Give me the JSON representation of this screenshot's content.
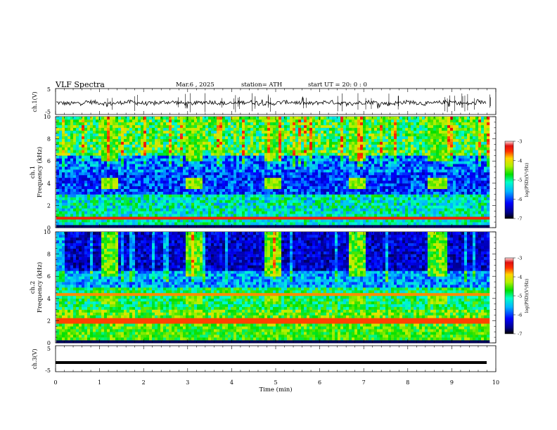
{
  "header": {
    "title": "VLF  Spectra",
    "date": "Mar.6  , 2025",
    "station": "station= ATH",
    "start": "start  UT  =    20: 0   : 0"
  },
  "chart_data": [
    {
      "type": "line",
      "panel": "ch1-waveform",
      "ylabel": "ch.1(V)",
      "y_ticks": [
        "5",
        "-5"
      ],
      "ylim": [
        -5,
        5
      ],
      "xlim": [
        0,
        10
      ],
      "note_level": "trace fluctuates around -0.5 V"
    },
    {
      "type": "heatmap",
      "panel": "ch1-spectrogram",
      "ylabel": "ch.1\nFrequency  (kHz)",
      "ylabel_line1": "ch.1",
      "ylabel_line2": "Frequency  (kHz)",
      "y_ticks": [
        "0",
        "2",
        "4",
        "6",
        "8",
        "10"
      ],
      "ylim": [
        0,
        10
      ],
      "xlim": [
        0,
        9.8
      ],
      "bursts_min": [
        [
          1.0,
          1.4
        ],
        [
          2.9,
          3.3
        ],
        [
          4.7,
          5.1
        ],
        [
          6.6,
          7.0
        ],
        [
          8.4,
          8.85
        ]
      ],
      "colorbar": {
        "label": "log(PSD)(V²/Hz)",
        "ticks": [
          "-3",
          "-4",
          "-5",
          "-6",
          "-7"
        ],
        "range": [
          -7,
          -3
        ]
      }
    },
    {
      "type": "heatmap",
      "panel": "ch2-spectrogram",
      "ylabel_line1": "ch.2",
      "ylabel_line2": "Frequency  (kHz)",
      "y_ticks": [
        "0",
        "2",
        "4",
        "6",
        "8",
        "10"
      ],
      "ylim": [
        0,
        10
      ],
      "xlim": [
        0,
        9.8
      ],
      "bursts_min": [
        [
          1.0,
          1.4
        ],
        [
          2.9,
          3.3
        ],
        [
          4.7,
          5.1
        ],
        [
          6.6,
          7.0
        ],
        [
          8.4,
          8.85
        ]
      ],
      "colorbar": {
        "label": "log(PSD)(V²/Hz)",
        "ticks": [
          "-3",
          "-4",
          "-5",
          "-6",
          "-7"
        ],
        "range": [
          -7,
          -3
        ]
      }
    },
    {
      "type": "line",
      "panel": "ch3-waveform",
      "ylabel": "ch.3(V)",
      "y_ticks": [
        "5",
        "-5"
      ],
      "ylim": [
        -5,
        5
      ],
      "xlim": [
        0,
        10
      ],
      "level": -1.5,
      "xlabel": "Time  (min)",
      "x_ticks": [
        "0",
        "1",
        "2",
        "3",
        "4",
        "5",
        "6",
        "7",
        "8",
        "9",
        "10"
      ]
    }
  ]
}
